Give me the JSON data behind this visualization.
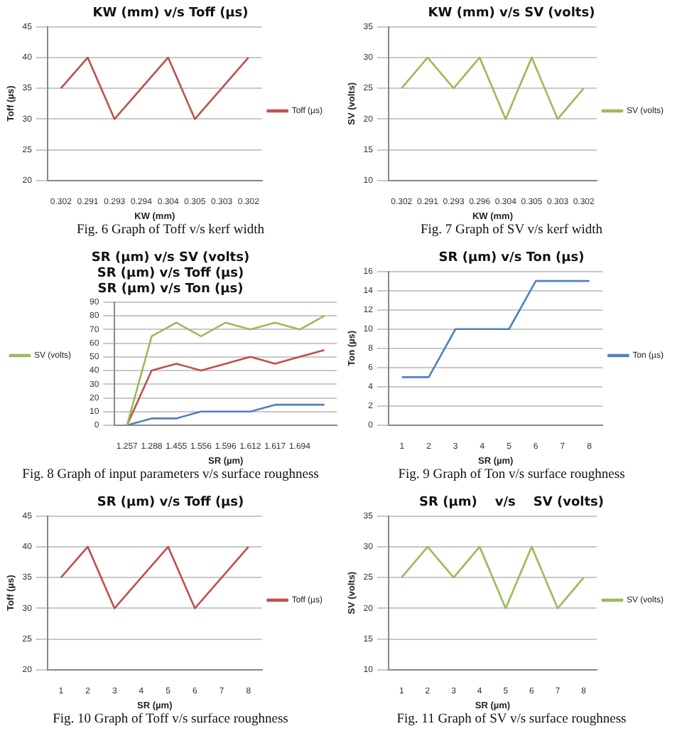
{
  "chart_data": [
    {
      "type": "line",
      "title": "KW (mm) v/s Toff (µs)",
      "xlabel": "KW (mm)",
      "ylabel": "Toff (µs)",
      "categories": [
        "0.302",
        "0.291",
        "0.293",
        "0.294",
        "0.304",
        "0.305",
        "0.303",
        "0.302"
      ],
      "series": [
        {
          "name": "Toff (µs)",
          "color": "#c0504d",
          "values": [
            35,
            40,
            30,
            35,
            40,
            30,
            35,
            40
          ]
        }
      ],
      "ylim": [
        20,
        45
      ],
      "yticks": [
        20,
        25,
        30,
        35,
        40,
        45
      ],
      "grid": "y",
      "legend": "right",
      "marker": "none",
      "line_style": "solid",
      "annotations": [
        "Fig. 6  Graph of Toff  v/s kerf width"
      ]
    },
    {
      "type": "line",
      "title": "KW (mm) v/s SV (volts)",
      "xlabel": "KW (mm)",
      "ylabel": "SV (volts)",
      "categories": [
        "0.302",
        "0.291",
        "0.293",
        "0.296",
        "0.304",
        "0.305",
        "0.303",
        "0.302"
      ],
      "series": [
        {
          "name": "SV (volts)",
          "color": "#9bbb59",
          "values": [
            25,
            30,
            25,
            30,
            20,
            30,
            20,
            25
          ]
        }
      ],
      "ylim": [
        10,
        35
      ],
      "yticks": [
        10,
        15,
        20,
        25,
        30,
        35
      ],
      "grid": "y",
      "legend": "right",
      "marker": "none",
      "line_style": "solid",
      "annotations": [
        "Fig. 7  Graph of SV v/s kerf width"
      ]
    },
    {
      "type": "line",
      "title": "SR (µm) v/s SV (volts)\nSR (µm) v/s Toff (µs)\nSR (µm) v/s Ton (µs)",
      "xlabel": "SR (µm)",
      "categories": [
        "1.257",
        "1.288",
        "1.455",
        "1.556",
        "1.596",
        "1.612",
        "1.617",
        "1.694",
        null
      ],
      "series": [
        {
          "name": "SV (volts)",
          "color": "#9bbb59",
          "values": [
            0,
            65,
            75,
            65,
            75,
            70,
            75,
            70,
            80
          ]
        },
        {
          "color": "#c0504d",
          "values": [
            0,
            40,
            45,
            40,
            45,
            50,
            45,
            50,
            55
          ]
        },
        {
          "color": "#4f81bd",
          "values": [
            0,
            5,
            5,
            10,
            10,
            10,
            15,
            15,
            15
          ]
        }
      ],
      "ylim": [
        0,
        90
      ],
      "yticks": [
        0,
        10,
        20,
        30,
        40,
        50,
        60,
        70,
        80,
        90
      ],
      "grid": "y",
      "legend": "left",
      "marker": "none",
      "line_style": "solid",
      "annotations": [
        "Fig. 8 Graph of input parameters  v/s surface roughness"
      ]
    },
    {
      "type": "line",
      "title": "SR (µm) v/s Ton (µs)",
      "xlabel": "SR (µm)",
      "ylabel": "Ton (µs)",
      "categories": [
        "1",
        "2",
        "3",
        "4",
        "5",
        "6",
        "7",
        "8"
      ],
      "series": [
        {
          "name": "Ton (µs)",
          "color": "#4f81bd",
          "values": [
            5,
            5,
            10,
            10,
            10,
            15,
            15,
            15
          ]
        }
      ],
      "ylim": [
        0,
        16
      ],
      "yticks": [
        0,
        2,
        4,
        6,
        8,
        10,
        12,
        14,
        16
      ],
      "grid": "y",
      "legend": "right",
      "marker": "none",
      "line_style": "solid",
      "annotations": [
        "Fig. 9 Graph of Ton v/s surface roughness"
      ]
    },
    {
      "type": "line",
      "title": "SR (µm) v/s Toff (µs)",
      "xlabel": "SR (µm)",
      "ylabel": "Toff (µs)",
      "categories": [
        "1",
        "2",
        "3",
        "4",
        "5",
        "6",
        "7",
        "8"
      ],
      "series": [
        {
          "name": "Toff (µs)",
          "color": "#c0504d",
          "values": [
            35,
            40,
            30,
            35,
            40,
            30,
            35,
            40
          ]
        }
      ],
      "ylim": [
        20,
        45
      ],
      "yticks": [
        20,
        25,
        30,
        35,
        40,
        45
      ],
      "grid": "y",
      "legend": "right",
      "marker": "none",
      "line_style": "solid",
      "annotations": [
        "Fig. 10 Graph of Toff v/s surface roughness"
      ]
    },
    {
      "type": "line",
      "title": "SR (µm)    v/s    SV (volts)",
      "xlabel": "SR (µm)",
      "ylabel": "SV (volts)",
      "categories": [
        "1",
        "2",
        "3",
        "4",
        "5",
        "6",
        "7",
        "8"
      ],
      "series": [
        {
          "name": "SV (volts)",
          "color": "#9bbb59",
          "values": [
            25,
            30,
            25,
            30,
            20,
            30,
            20,
            25
          ]
        }
      ],
      "ylim": [
        10,
        35
      ],
      "yticks": [
        10,
        15,
        20,
        25,
        30,
        35
      ],
      "grid": "y",
      "legend": "right",
      "marker": "none",
      "line_style": "solid",
      "annotations": [
        "Fig. 11 Graph of SV v/s surface roughness"
      ]
    }
  ]
}
